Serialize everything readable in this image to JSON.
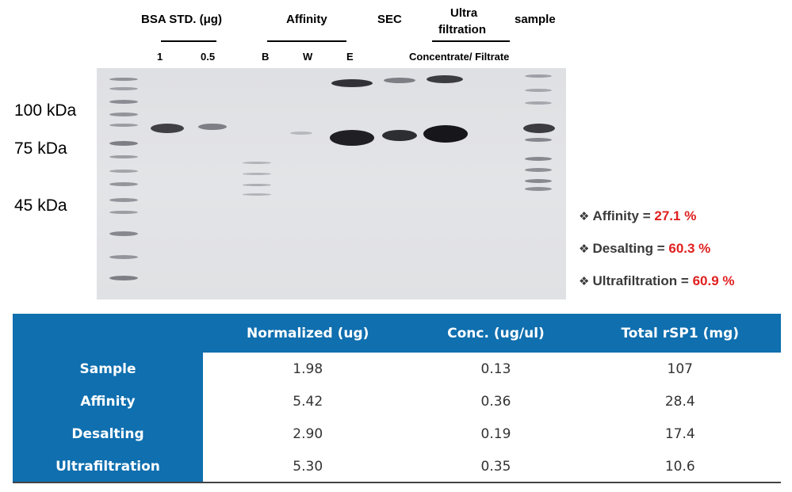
{
  "gel_header": {
    "bsa_std": "BSA STD. (μg)",
    "affinity": "Affinity",
    "sec": "SEC",
    "ultra_line1": "Ultra",
    "ultra_line2": "filtration",
    "sample": "sample",
    "lanes": {
      "bsa_1": "1",
      "bsa_05": "0.5",
      "b": "B",
      "w": "W",
      "e": "E",
      "conc_filt": "Concentrate/ Filtrate"
    }
  },
  "markers": {
    "kda100": "100 kDa",
    "kda75": "75 kDa",
    "kda45": "45 kDa"
  },
  "yields": [
    {
      "label": "Affinity =",
      "value": "27.1 %"
    },
    {
      "label": "Desalting =",
      "value": "60.3 %"
    },
    {
      "label": "Ultrafiltration =",
      "value": "60.9 %"
    }
  ],
  "table": {
    "headers": [
      "",
      "Normalized (ug)",
      "Conc. (ug/ul)",
      "Total rSP1 (mg)"
    ],
    "rows": [
      {
        "name": "Sample",
        "normalized": "1.98",
        "conc": "0.13",
        "total": "107"
      },
      {
        "name": "Affinity",
        "normalized": "5.42",
        "conc": "0.36",
        "total": "28.4"
      },
      {
        "name": "Desalting",
        "normalized": "2.90",
        "conc": "0.19",
        "total": "17.4"
      },
      {
        "name": "Ultrafiltration",
        "normalized": "5.30",
        "conc": "0.35",
        "total": "10.6"
      }
    ]
  },
  "colors": {
    "table_header_bg": "#0f6faf",
    "percent_red": "#e02020"
  }
}
